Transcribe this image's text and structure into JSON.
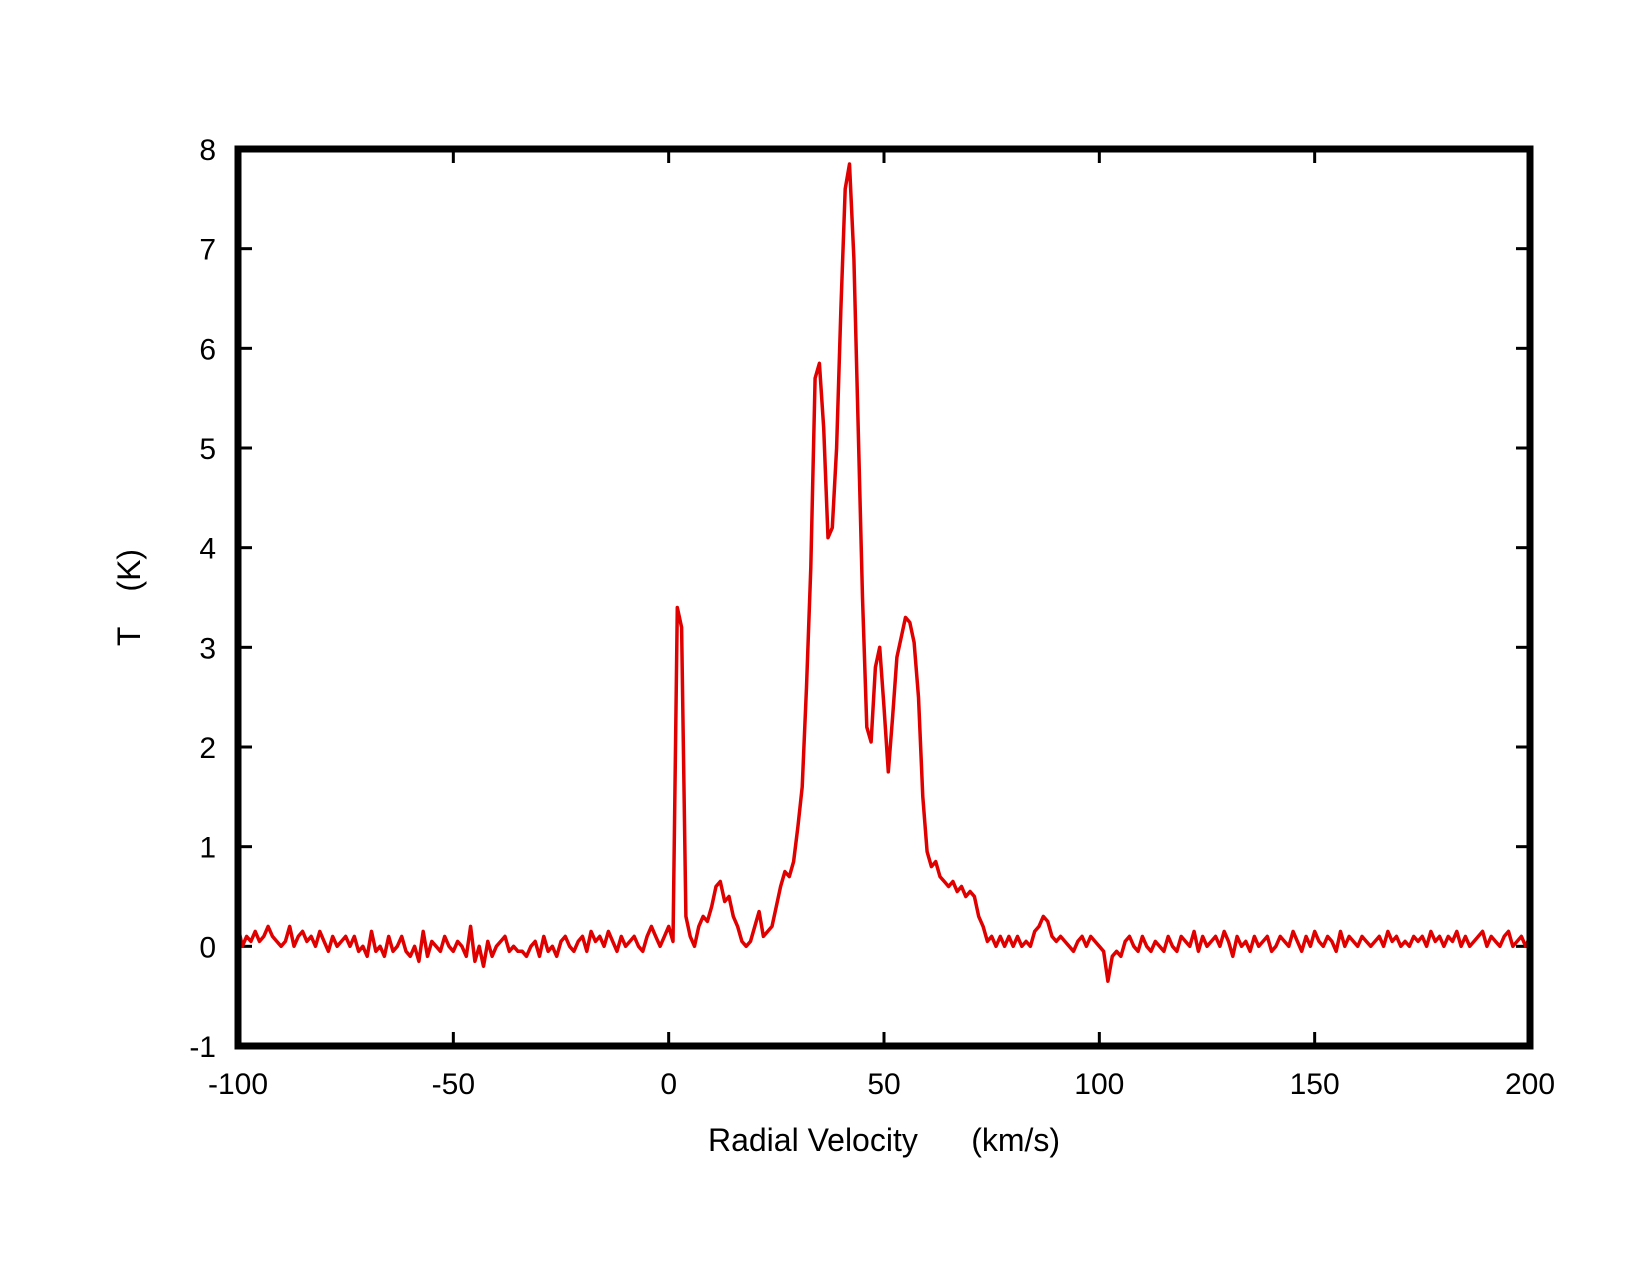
{
  "chart_data": {
    "type": "line",
    "title": "",
    "xlabel": "Radial Velocity      (km/s)",
    "ylabel": "T    (K)",
    "xlim": [
      -100,
      200
    ],
    "ylim": [
      -1,
      8
    ],
    "xticks": [
      "-100",
      "-50",
      "0",
      "50",
      "100",
      "150",
      "200"
    ],
    "yticks": [
      "-1",
      "0",
      "1",
      "2",
      "3",
      "4",
      "5",
      "6",
      "7",
      "8"
    ],
    "grid": false,
    "legend": "none",
    "colors": {
      "line": "#e00000",
      "frame": "#000000"
    },
    "series": [
      {
        "x": [
          -100,
          -99,
          -98,
          -97,
          -96,
          -95,
          -94,
          -93,
          -92,
          -91,
          -90,
          -89,
          -88,
          -87,
          -86,
          -85,
          -84,
          -83,
          -82,
          -81,
          -80,
          -79,
          -78,
          -77,
          -76,
          -75,
          -74,
          -73,
          -72,
          -71,
          -70,
          -69,
          -68,
          -67,
          -66,
          -65,
          -64,
          -63,
          -62,
          -61,
          -60,
          -59,
          -58,
          -57,
          -56,
          -55,
          -54,
          -53,
          -52,
          -51,
          -50,
          -49,
          -48,
          -47,
          -46,
          -45,
          -44,
          -43,
          -42,
          -41,
          -40,
          -39,
          -38,
          -37,
          -36,
          -35,
          -34,
          -33,
          -32,
          -31,
          -30,
          -29,
          -28,
          -27,
          -26,
          -25,
          -24,
          -23,
          -22,
          -21,
          -20,
          -19,
          -18,
          -17,
          -16,
          -15,
          -14,
          -13,
          -12,
          -11,
          -10,
          -9,
          -8,
          -7,
          -6,
          -5,
          -4,
          -3,
          -2,
          -1,
          0,
          1,
          2,
          3,
          4,
          5,
          6,
          7,
          8,
          9,
          10,
          11,
          12,
          13,
          14,
          15,
          16,
          17,
          18,
          19,
          20,
          21,
          22,
          23,
          24,
          25,
          26,
          27,
          28,
          29,
          30,
          31,
          32,
          33,
          34,
          35,
          36,
          37,
          38,
          39,
          40,
          41,
          42,
          43,
          44,
          45,
          46,
          47,
          48,
          49,
          50,
          51,
          52,
          53,
          54,
          55,
          56,
          57,
          58,
          59,
          60,
          61,
          62,
          63,
          64,
          65,
          66,
          67,
          68,
          69,
          70,
          71,
          72,
          73,
          74,
          75,
          76,
          77,
          78,
          79,
          80,
          81,
          82,
          83,
          84,
          85,
          86,
          87,
          88,
          89,
          90,
          91,
          92,
          93,
          94,
          95,
          96,
          97,
          98,
          99,
          100,
          101,
          102,
          103,
          104,
          105,
          106,
          107,
          108,
          109,
          110,
          111,
          112,
          113,
          114,
          115,
          116,
          117,
          118,
          119,
          120,
          121,
          122,
          123,
          124,
          125,
          126,
          127,
          128,
          129,
          130,
          131,
          132,
          133,
          134,
          135,
          136,
          137,
          138,
          139,
          140,
          141,
          142,
          143,
          144,
          145,
          146,
          147,
          148,
          149,
          150,
          151,
          152,
          153,
          154,
          155,
          156,
          157,
          158,
          159,
          160,
          161,
          162,
          163,
          164,
          165,
          166,
          167,
          168,
          169,
          170,
          171,
          172,
          173,
          174,
          175,
          176,
          177,
          178,
          179,
          180,
          181,
          182,
          183,
          184,
          185,
          186,
          187,
          188,
          189,
          190,
          191,
          192,
          193,
          194,
          195,
          196,
          197,
          198,
          199,
          200
        ],
        "y": [
          0.2,
          0.0,
          0.1,
          0.05,
          0.15,
          0.05,
          0.1,
          0.2,
          0.1,
          0.05,
          0.0,
          0.05,
          0.2,
          0.0,
          0.1,
          0.15,
          0.05,
          0.1,
          0.0,
          0.15,
          0.05,
          -0.05,
          0.1,
          0.0,
          0.05,
          0.1,
          0.0,
          0.1,
          -0.05,
          0.0,
          -0.1,
          0.15,
          -0.05,
          0.0,
          -0.1,
          0.1,
          -0.05,
          0.0,
          0.1,
          -0.05,
          -0.1,
          0.0,
          -0.15,
          0.15,
          -0.1,
          0.05,
          0.0,
          -0.05,
          0.1,
          0.0,
          -0.05,
          0.05,
          0.0,
          -0.1,
          0.2,
          -0.15,
          0.0,
          -0.2,
          0.05,
          -0.1,
          0.0,
          0.05,
          0.1,
          -0.05,
          0.0,
          -0.05,
          -0.05,
          -0.1,
          0.0,
          0.05,
          -0.1,
          0.1,
          -0.05,
          0.0,
          -0.1,
          0.05,
          0.1,
          0.0,
          -0.05,
          0.05,
          0.1,
          -0.05,
          0.15,
          0.05,
          0.1,
          0.0,
          0.15,
          0.05,
          -0.05,
          0.1,
          0.0,
          0.05,
          0.1,
          0.0,
          -0.05,
          0.1,
          0.2,
          0.1,
          0.0,
          0.1,
          0.2,
          0.05,
          3.4,
          3.2,
          0.3,
          0.1,
          0.0,
          0.2,
          0.3,
          0.25,
          0.4,
          0.6,
          0.65,
          0.45,
          0.5,
          0.3,
          0.2,
          0.05,
          0.0,
          0.05,
          0.2,
          0.35,
          0.1,
          0.15,
          0.2,
          0.4,
          0.6,
          0.75,
          0.7,
          0.85,
          1.2,
          1.6,
          2.6,
          3.8,
          5.7,
          5.85,
          5.2,
          4.1,
          4.2,
          5.0,
          6.4,
          7.6,
          7.85,
          6.9,
          5.2,
          3.5,
          2.2,
          2.05,
          2.8,
          3.0,
          2.4,
          1.75,
          2.3,
          2.9,
          3.1,
          3.3,
          3.25,
          3.05,
          2.5,
          1.5,
          0.95,
          0.8,
          0.85,
          0.7,
          0.65,
          0.6,
          0.65,
          0.55,
          0.6,
          0.5,
          0.55,
          0.5,
          0.3,
          0.2,
          0.05,
          0.1,
          0.0,
          0.1,
          0.0,
          0.1,
          0.0,
          0.1,
          0.0,
          0.05,
          0.0,
          0.15,
          0.2,
          0.3,
          0.25,
          0.1,
          0.05,
          0.1,
          0.05,
          0.0,
          -0.05,
          0.05,
          0.1,
          0.0,
          0.1,
          0.05,
          0.0,
          -0.05,
          -0.35,
          -0.1,
          -0.05,
          -0.1,
          0.05,
          0.1,
          0.0,
          -0.05,
          0.1,
          0.0,
          -0.05,
          0.05,
          0.0,
          -0.05,
          0.1,
          0.0,
          -0.05,
          0.1,
          0.05,
          0.0,
          0.15,
          -0.05,
          0.1,
          0.0,
          0.05,
          0.1,
          0.0,
          0.15,
          0.05,
          -0.1,
          0.1,
          0.0,
          0.05,
          -0.05,
          0.1,
          0.0,
          0.05,
          0.1,
          -0.05,
          0.0,
          0.1,
          0.05,
          0.0,
          0.15,
          0.05,
          -0.05,
          0.1,
          0.0,
          0.15,
          0.05,
          0.0,
          0.1,
          0.05,
          -0.05,
          0.15,
          0.0,
          0.1,
          0.05,
          0.0,
          0.1,
          0.05,
          0.0,
          0.05,
          0.1,
          0.0,
          0.15,
          0.05,
          0.1,
          0.0,
          0.05,
          0.0,
          0.1,
          0.05,
          0.1,
          0.0,
          0.15,
          0.05,
          0.1,
          0.0,
          0.1,
          0.05,
          0.15,
          0.0,
          0.1,
          0.0,
          0.05,
          0.1,
          0.15,
          0.0,
          0.1,
          0.05,
          0.0,
          0.1,
          0.15,
          0.0,
          0.05,
          0.1,
          0.0,
          0.1
        ]
      }
    ]
  }
}
